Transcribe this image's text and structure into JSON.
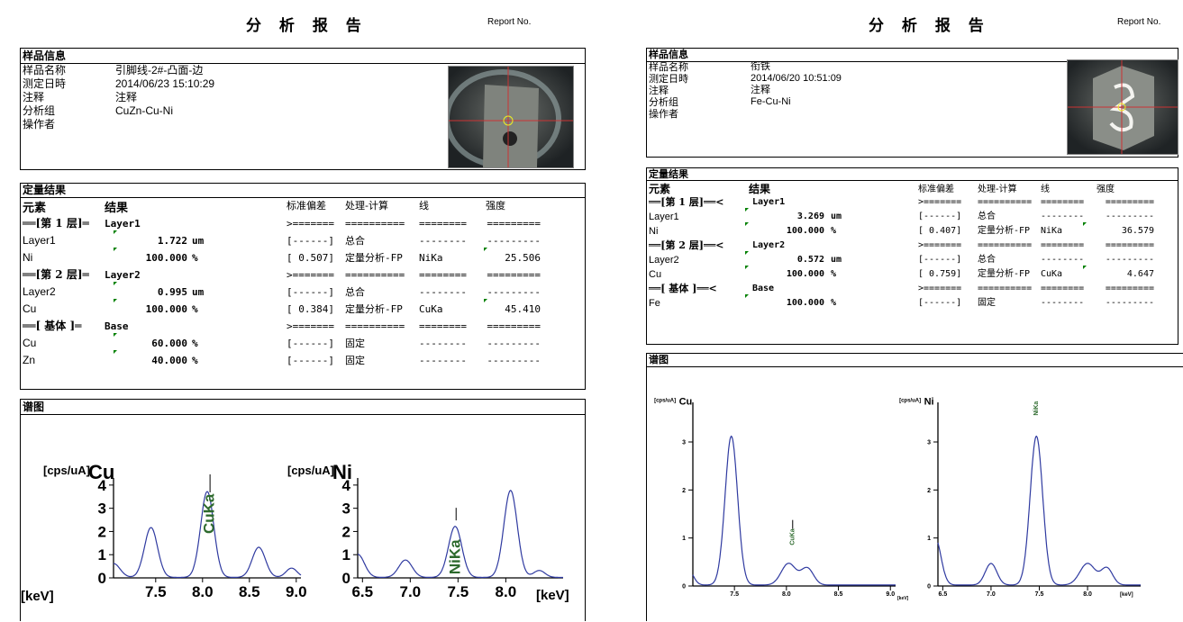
{
  "left": {
    "title": "分 析 报 告",
    "report_no": "Report No.",
    "info": {
      "header": "样品信息",
      "rows": [
        {
          "label": "样品名称",
          "value": "引脚线-2#-凸面-边"
        },
        {
          "label": "测定日時",
          "value": "2014/06/23 15:10:29"
        },
        {
          "label": "注释",
          "value": "注释"
        },
        {
          "label": "分析组",
          "value": "CuZn-Cu-Ni"
        },
        {
          "label": "操作者",
          "value": ""
        }
      ]
    },
    "quant": {
      "header": "定量结果",
      "cols": {
        "element": "元素",
        "result": "结果",
        "std": "标准偏差",
        "proc": "处理-计算",
        "line": "线",
        "intensity": "强度"
      },
      "rows": [
        {
          "t": "sec",
          "label": "══[第 1 层]═",
          "name": "Layer1",
          "std": ">=======",
          "proc": "==========",
          "line": "========",
          "int": "========="
        },
        {
          "t": "data",
          "el": "Layer1",
          "val": "1.722",
          "unit": "um",
          "std": "[------]",
          "proc": "总合",
          "line": "--------",
          "int": "---------",
          "mk": true
        },
        {
          "t": "data",
          "el": "Ni",
          "val": "100.000",
          "unit": "%",
          "std": "[ 0.507]",
          "proc": "定量分析-FP",
          "line": "NiKa",
          "int": "25.506",
          "mk": true,
          "imk": true
        },
        {
          "t": "sec",
          "label": "══[第 2 层]═",
          "name": "Layer2",
          "std": ">=======",
          "proc": "==========",
          "line": "========",
          "int": "========="
        },
        {
          "t": "data",
          "el": "Layer2",
          "val": "0.995",
          "unit": "um",
          "std": "[------]",
          "proc": "总合",
          "line": "--------",
          "int": "---------",
          "mk": true
        },
        {
          "t": "data",
          "el": "Cu",
          "val": "100.000",
          "unit": "%",
          "std": "[ 0.384]",
          "proc": "定量分析-FP",
          "line": "CuKa",
          "int": "45.410",
          "mk": true,
          "imk": true
        },
        {
          "t": "sec",
          "label": "══[ 基体 ]═",
          "name": "Base",
          "std": ">=======",
          "proc": "==========",
          "line": "========",
          "int": "========="
        },
        {
          "t": "data",
          "el": "Cu",
          "val": "60.000",
          "unit": "%",
          "std": "[------]",
          "proc": "固定",
          "line": "--------",
          "int": "---------",
          "mk": true
        },
        {
          "t": "data",
          "el": "Zn",
          "val": "40.000",
          "unit": "%",
          "std": "[------]",
          "proc": "固定",
          "line": "--------",
          "int": "---------",
          "mk": true
        }
      ]
    },
    "spectra": {
      "header": "谱图",
      "charts": [
        {
          "unit": "[cps/uA]",
          "elem": "Cu",
          "xunit": "",
          "yticks": [
            "0",
            "1",
            "2",
            "3",
            "4"
          ],
          "xticks": [
            "7.5",
            "8.0",
            "8.5",
            "9.0"
          ],
          "peak_label": "CuKa"
        },
        {
          "unit": "[cps/uA]",
          "elem": "Ni",
          "xunit": "[keV]",
          "yticks": [
            "0",
            "1",
            "2",
            "3",
            "4"
          ],
          "xticks": [
            "6.5",
            "7.0",
            "7.5",
            "8.0"
          ],
          "peak_label": "NiKa"
        }
      ],
      "end_unit": "[keV]"
    }
  },
  "right": {
    "title": "分 析 报 告",
    "report_no": "Report No.",
    "info": {
      "header": "样品信息",
      "rows": [
        {
          "label": "样品名称",
          "value": "衔铁"
        },
        {
          "label": "测定日時",
          "value": "2014/06/20 10:51:09"
        },
        {
          "label": "注释",
          "value": "注释"
        },
        {
          "label": "分析组",
          "value": "Fe-Cu-Ni"
        },
        {
          "label": "操作者",
          "value": ""
        }
      ]
    },
    "quant": {
      "header": "定量结果",
      "cols": {
        "element": "元素",
        "result": "结果",
        "std": "标准偏差",
        "proc": "处理-计算",
        "line": "线",
        "intensity": "强度"
      },
      "rows": [
        {
          "t": "sec",
          "label": "══[第 1 层]══<",
          "name": "Layer1",
          "std": ">=======",
          "proc": "==========",
          "line": "========",
          "int": "========="
        },
        {
          "t": "data",
          "el": "Layer1",
          "val": "3.269",
          "unit": "um",
          "std": "[------]",
          "proc": "总合",
          "line": "--------",
          "int": "---------",
          "mk": true
        },
        {
          "t": "data",
          "el": "Ni",
          "val": "100.000",
          "unit": "%",
          "std": "[ 0.407]",
          "proc": "定量分析-FP",
          "line": "NiKa",
          "int": "36.579",
          "mk": true,
          "imk": true
        },
        {
          "t": "sec",
          "label": "══[第 2 层]══<",
          "name": "Layer2",
          "std": ">=======",
          "proc": "==========",
          "line": "========",
          "int": "========="
        },
        {
          "t": "data",
          "el": "Layer2",
          "val": "0.572",
          "unit": "um",
          "std": "[------]",
          "proc": "总合",
          "line": "--------",
          "int": "---------",
          "mk": true
        },
        {
          "t": "data",
          "el": "Cu",
          "val": "100.000",
          "unit": "%",
          "std": "[ 0.759]",
          "proc": "定量分析-FP",
          "line": "CuKa",
          "int": "4.647",
          "mk": true,
          "imk": true
        },
        {
          "t": "sec",
          "label": "══[ 基体 ]══<",
          "name": "Base",
          "std": ">=======",
          "proc": "==========",
          "line": "========",
          "int": "========="
        },
        {
          "t": "data",
          "el": "Fe",
          "val": "100.000",
          "unit": "%",
          "std": "[------]",
          "proc": "固定",
          "line": "--------",
          "int": "---------",
          "mk": true
        }
      ]
    },
    "spectra": {
      "header": "谱图",
      "charts": [
        {
          "unit": "[cps/uA]",
          "elem": "Cu",
          "xunit": "[keV]",
          "yticks": [
            "0",
            "1",
            "2",
            "3"
          ],
          "xticks": [
            "7.5",
            "8.0",
            "8.5",
            "9.0"
          ],
          "peak_label": "CuKa"
        },
        {
          "unit": "[cps/uA]",
          "elem": "Ni",
          "xunit": "",
          "yticks": [
            "0",
            "1",
            "2",
            "3"
          ],
          "xticks": [
            "6.5",
            "7.0",
            "7.5",
            "8.0"
          ],
          "peak_label": "NiKa"
        }
      ],
      "end_unit": "[keV]"
    }
  }
}
